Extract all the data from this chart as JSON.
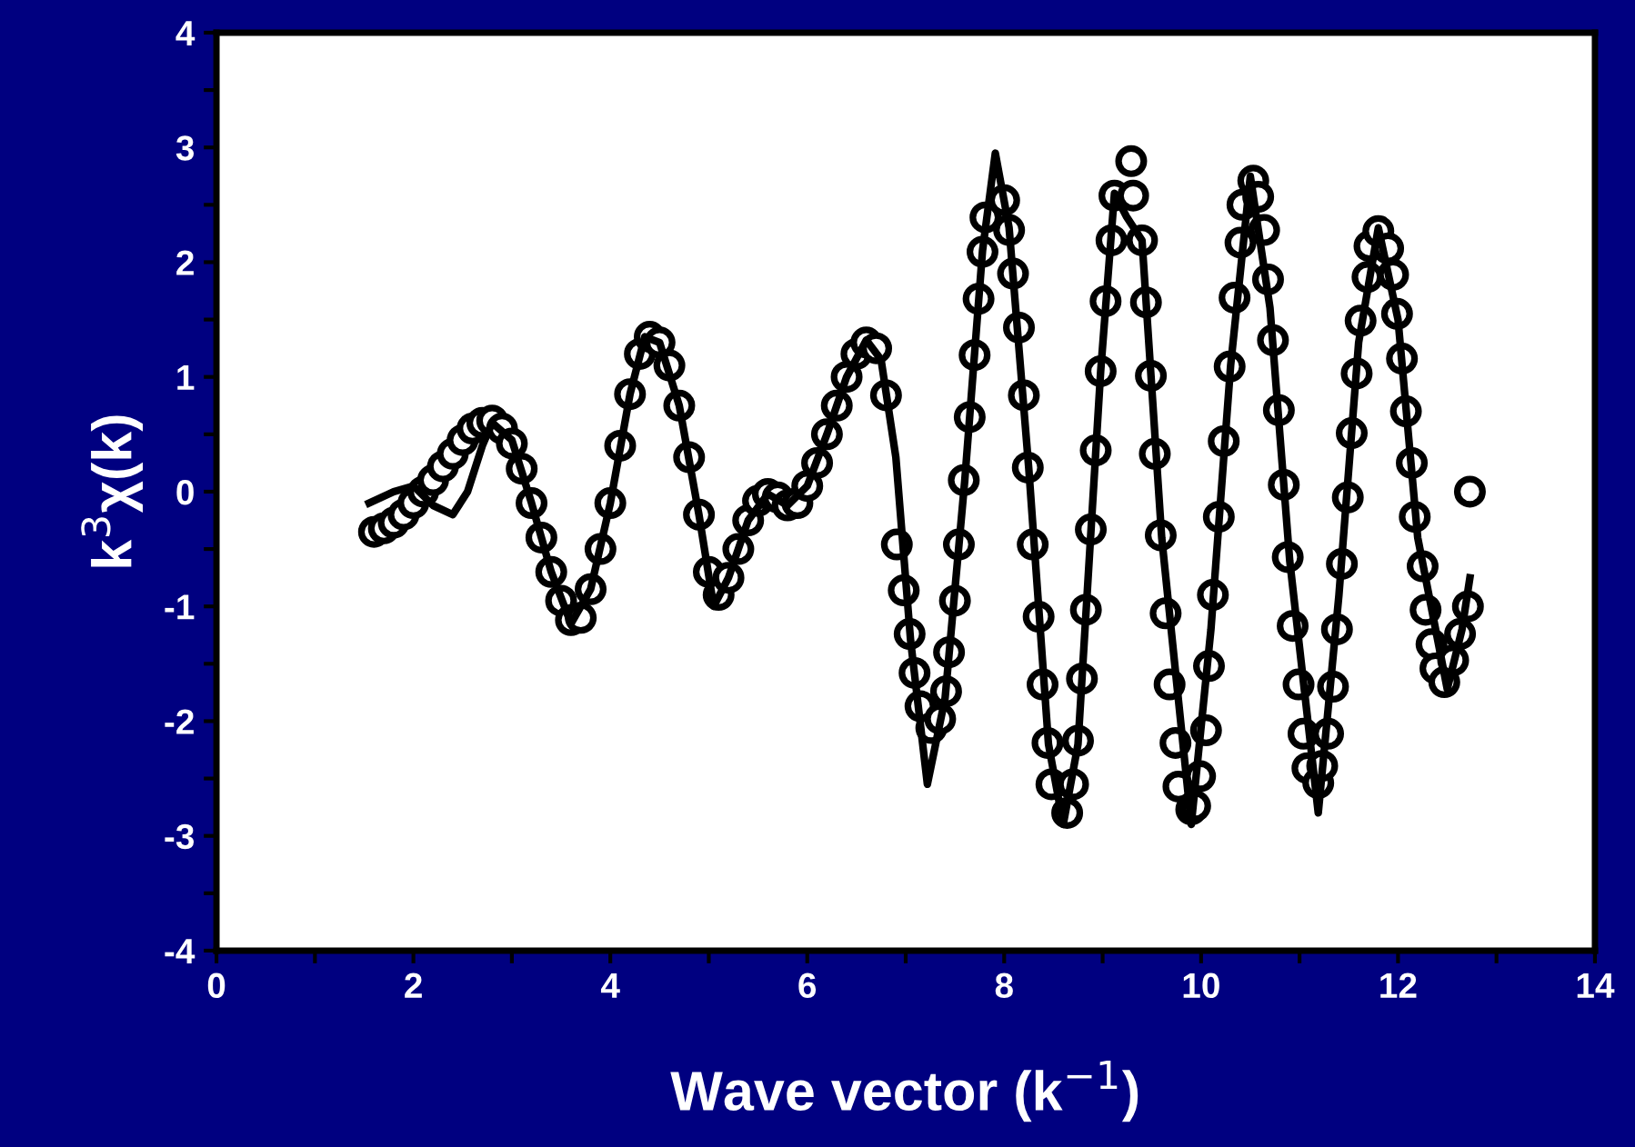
{
  "chart_data": {
    "type": "scatter",
    "xlabel": "Wave vector (k$^{−1}$)",
    "ylabel": "k$^{3}$χ(k)",
    "xlim": [
      0,
      14
    ],
    "ylim": [
      -4,
      4
    ],
    "xticks": [
      0,
      {
        "value": 1,
        "label": null
      },
      2,
      {
        "value": 3,
        "label": null
      },
      4,
      {
        "value": 5,
        "label": null
      },
      6,
      {
        "value": 7,
        "label": null
      },
      8,
      {
        "value": 9,
        "label": null
      },
      10,
      {
        "value": 11,
        "label": null
      },
      12,
      {
        "value": 13,
        "label": null
      },
      14
    ],
    "yticks": [
      -4,
      {
        "value": -3.5,
        "label": null
      },
      -3,
      {
        "value": -2.5,
        "label": null
      },
      -2,
      {
        "value": -1.5,
        "label": null
      },
      -1,
      {
        "value": -0.5,
        "label": null
      },
      0,
      {
        "value": 0.5,
        "label": null
      },
      1,
      {
        "value": 1.5,
        "label": null
      },
      2,
      {
        "value": 2.5,
        "label": null
      },
      3,
      {
        "value": 3.5,
        "label": null
      },
      4
    ],
    "grid": false,
    "legend": false,
    "series": [
      {
        "marker": "circle",
        "color": "#000000",
        "x": [
          1.6,
          1.7,
          1.8,
          1.9,
          2.0,
          2.1,
          2.2,
          2.3,
          2.4,
          2.5,
          2.6,
          2.7,
          2.8,
          2.9,
          3.0,
          3.1,
          3.2,
          3.3,
          3.4,
          3.5,
          3.6,
          3.7,
          3.8,
          3.9,
          4.0,
          4.1,
          4.2,
          4.3,
          4.4,
          4.5,
          4.6,
          4.7,
          4.8,
          4.9,
          5.0,
          5.1,
          5.2,
          5.3,
          5.4,
          5.5,
          5.6,
          5.7,
          5.8,
          5.9,
          6.0,
          6.1,
          6.2,
          6.3,
          6.4,
          6.5,
          6.6,
          6.7,
          6.8,
          6.91,
          6.98,
          7.04,
          7.09,
          7.15,
          7.26,
          7.35,
          7.41,
          7.44,
          7.5,
          7.54,
          7.59,
          7.65,
          7.7,
          7.74,
          7.78,
          7.81,
          8.0,
          8.05,
          8.09,
          8.15,
          8.2,
          8.24,
          8.29,
          8.35,
          8.39,
          8.44,
          8.48,
          8.64,
          8.7,
          8.75,
          8.79,
          8.83,
          8.88,
          8.93,
          8.98,
          9.03,
          9.09,
          9.12,
          9.29,
          9.31,
          9.4,
          9.44,
          9.49,
          9.53,
          9.59,
          9.64,
          9.68,
          9.74,
          9.77,
          9.9,
          9.94,
          9.99,
          10.05,
          10.08,
          10.12,
          10.18,
          10.23,
          10.29,
          10.34,
          10.4,
          10.42,
          10.53,
          10.58,
          10.64,
          10.68,
          10.73,
          10.79,
          10.84,
          10.88,
          10.93,
          10.99,
          11.04,
          11.08,
          11.19,
          11.23,
          11.29,
          11.34,
          11.38,
          11.43,
          11.49,
          11.53,
          11.58,
          11.62,
          11.69,
          11.71,
          11.8,
          11.9,
          11.95,
          11.99,
          12.04,
          12.08,
          12.14,
          12.17,
          12.25,
          12.28,
          12.34,
          12.38,
          12.47,
          12.56,
          12.63,
          12.71,
          12.73
        ],
        "values": [
          -0.35,
          -0.32,
          -0.27,
          -0.2,
          -0.1,
          0.0,
          0.1,
          0.22,
          0.33,
          0.45,
          0.55,
          0.6,
          0.62,
          0.55,
          0.42,
          0.2,
          -0.1,
          -0.4,
          -0.7,
          -0.95,
          -1.12,
          -1.1,
          -0.85,
          -0.5,
          -0.1,
          0.4,
          0.85,
          1.2,
          1.35,
          1.3,
          1.1,
          0.75,
          0.3,
          -0.2,
          -0.7,
          -0.9,
          -0.75,
          -0.5,
          -0.25,
          -0.08,
          -0.02,
          -0.05,
          -0.12,
          -0.1,
          0.05,
          0.25,
          0.5,
          0.75,
          1.0,
          1.2,
          1.3,
          1.25,
          0.84,
          -0.46,
          -0.86,
          -1.24,
          -1.58,
          -1.87,
          -2.06,
          -1.98,
          -1.74,
          -1.4,
          -0.95,
          -0.46,
          0.1,
          0.65,
          1.19,
          1.68,
          2.09,
          2.39,
          2.54,
          2.28,
          1.9,
          1.43,
          0.84,
          0.21,
          -0.46,
          -1.09,
          -1.68,
          -2.19,
          -2.55,
          -2.8,
          -2.55,
          -2.17,
          -1.63,
          -1.03,
          -0.33,
          0.36,
          1.05,
          1.66,
          2.19,
          2.58,
          2.88,
          2.58,
          2.19,
          1.65,
          1.01,
          0.33,
          -0.38,
          -1.06,
          -1.68,
          -2.19,
          -2.57,
          -2.77,
          -2.74,
          -2.48,
          -2.08,
          -1.52,
          -0.9,
          -0.22,
          0.44,
          1.09,
          1.69,
          2.17,
          2.5,
          2.71,
          2.57,
          2.28,
          1.85,
          1.32,
          0.71,
          0.06,
          -0.57,
          -1.17,
          -1.68,
          -2.11,
          -2.41,
          -2.54,
          -2.39,
          -2.11,
          -1.7,
          -1.2,
          -0.63,
          -0.05,
          0.51,
          1.03,
          1.49,
          1.87,
          2.14,
          2.27,
          2.12,
          1.89,
          1.55,
          1.16,
          0.7,
          0.25,
          -0.22,
          -0.65,
          -1.03,
          -1.33,
          -1.54,
          -1.66,
          -1.47,
          -1.24,
          -1.0,
          0.0
        ]
      },
      {
        "type": "line",
        "marker": "none",
        "line_style": "solid",
        "color": "#000000",
        "x": [
          1.55,
          1.8,
          2.0,
          2.2,
          2.4,
          2.55,
          2.7,
          2.8,
          3.0,
          3.2,
          3.4,
          3.6,
          3.8,
          4.0,
          4.2,
          4.35,
          4.5,
          4.7,
          4.9,
          5.05,
          5.2,
          5.4,
          5.6,
          5.8,
          6.0,
          6.2,
          6.4,
          6.6,
          6.75,
          6.9,
          7.05,
          7.22,
          7.4,
          7.6,
          7.78,
          7.91,
          8.05,
          8.25,
          8.45,
          8.6,
          8.75,
          8.98,
          9.12,
          9.24,
          9.4,
          9.6,
          9.9,
          10.1,
          10.3,
          10.5,
          10.7,
          10.9,
          11.19,
          11.4,
          11.6,
          11.8,
          12.0,
          12.2,
          12.5,
          12.65,
          12.73
        ],
        "values": [
          -0.1,
          0.0,
          0.05,
          -0.12,
          -0.2,
          0.0,
          0.4,
          0.6,
          0.45,
          -0.1,
          -0.7,
          -1.15,
          -0.85,
          -0.1,
          0.85,
          1.35,
          1.3,
          0.75,
          -0.2,
          -1.0,
          -0.75,
          -0.25,
          -0.02,
          -0.12,
          0.05,
          0.5,
          1.0,
          1.32,
          1.15,
          0.3,
          -1.3,
          -2.55,
          -1.8,
          0.1,
          2.1,
          2.95,
          2.3,
          0.2,
          -2.2,
          -2.9,
          -2.2,
          1.05,
          2.6,
          2.4,
          2.19,
          -0.4,
          -2.9,
          -1.2,
          1.1,
          2.75,
          1.6,
          -0.6,
          -2.8,
          -0.9,
          1.3,
          2.3,
          1.5,
          -0.4,
          -1.72,
          -1.2,
          -0.75
        ]
      }
    ]
  }
}
